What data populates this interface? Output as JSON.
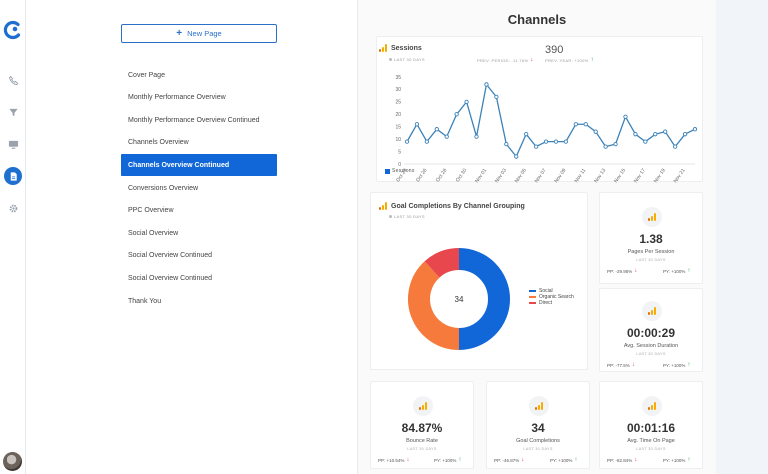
{
  "rail": {
    "icons": [
      "logo-icon",
      "phone-icon",
      "filter-icon",
      "monitor-icon",
      "document-icon",
      "gear-icon"
    ]
  },
  "pages_panel": {
    "new_page_label": "New Page",
    "items": [
      {
        "label": "Cover Page",
        "active": false
      },
      {
        "label": "Monthly Performance Overview",
        "active": false
      },
      {
        "label": "Monthly Performance Overview Continued",
        "active": false
      },
      {
        "label": "Channels Overview",
        "active": false
      },
      {
        "label": "Channels Overview Continued",
        "active": true
      },
      {
        "label": "Conversions Overview",
        "active": false
      },
      {
        "label": "PPC Overview",
        "active": false
      },
      {
        "label": "Social Overview",
        "active": false
      },
      {
        "label": "Social Overview Continued",
        "active": false
      },
      {
        "label": "Social Overview Continued",
        "active": false
      },
      {
        "label": "Thank You",
        "active": false
      }
    ]
  },
  "report": {
    "title": "Channels",
    "sessions": {
      "title": "Sessions",
      "period": "LAST 30 DAYS",
      "total": "390",
      "prev_period": "PREV. PERIOD: -11.76%",
      "prev_year": "PREV. YEAR: +100%",
      "legend": "Sessions",
      "color": "#3b82b8"
    },
    "goal_completions": {
      "title": "Goal Completions By Channel Grouping",
      "period": "LAST 30 DAYS",
      "center_value": "34"
    },
    "kpis": {
      "pages_per_session": {
        "value": "1.38",
        "name": "Pages Per Session",
        "period": "LAST 30 DAYS",
        "pp": "PP: -29.95%",
        "py": "PY: +100%"
      },
      "avg_session_duration": {
        "value": "00:00:29",
        "name": "Avg. Session Duration",
        "period": "LAST 30 DAYS",
        "pp": "PP: -77.5%",
        "py": "PY: +100%"
      },
      "bounce_rate": {
        "value": "84.87%",
        "name": "Bounce Rate",
        "period": "LAST 30 DAYS",
        "pp": "PP: +10.54%",
        "py": "PY: +100%"
      },
      "goal_completions": {
        "value": "34",
        "name": "Goal Completions",
        "period": "LAST 30 DAYS",
        "pp": "PP: -46.87%",
        "py": "PY: +100%"
      },
      "avg_time_on_page": {
        "value": "00:01:16",
        "name": "Avg. Time On Page",
        "period": "LAST 30 DAYS",
        "pp": "PP: -82.84%",
        "py": "PY: +100%"
      }
    },
    "colors": {
      "accent": "#1167d8",
      "up": "#1e9c3d",
      "down": "#e0393e"
    }
  },
  "chart_data": [
    {
      "type": "line",
      "title": "Sessions",
      "ylim": [
        0,
        35
      ],
      "yticks": [
        0,
        5,
        10,
        15,
        20,
        25,
        30,
        35
      ],
      "xtick_labels": [
        "Oct 24",
        "Oct 26",
        "Oct 28",
        "Oct 30",
        "Nov 01",
        "Nov 03",
        "Nov 05",
        "Nov 07",
        "Nov 09",
        "Nov 11",
        "Nov 13",
        "Nov 15",
        "Nov 17",
        "Nov 19",
        "Nov 21"
      ],
      "x": [
        "Oct 24",
        "Oct 25",
        "Oct 26",
        "Oct 27",
        "Oct 28",
        "Oct 29",
        "Oct 30",
        "Oct 31",
        "Nov 01",
        "Nov 02",
        "Nov 03",
        "Nov 04",
        "Nov 05",
        "Nov 06",
        "Nov 07",
        "Nov 08",
        "Nov 09",
        "Nov 10",
        "Nov 11",
        "Nov 12",
        "Nov 13",
        "Nov 14",
        "Nov 15",
        "Nov 16",
        "Nov 17",
        "Nov 18",
        "Nov 19",
        "Nov 20",
        "Nov 21",
        "Nov 22"
      ],
      "series": [
        {
          "name": "Sessions",
          "color": "#3b82b8",
          "values": [
            9,
            16,
            9,
            14,
            11,
            20,
            25,
            11,
            32,
            27,
            8,
            3,
            12,
            7,
            9,
            9,
            9,
            16,
            16,
            13,
            7,
            8,
            19,
            12,
            9,
            12,
            13,
            7,
            12,
            14
          ]
        }
      ],
      "legend": "bottom-left",
      "grid": false
    },
    {
      "type": "pie",
      "title": "Goal Completions By Channel Grouping",
      "categories": [
        "Social",
        "Organic Search",
        "Direct"
      ],
      "values": [
        17,
        13,
        4
      ],
      "colors": [
        "#1167d8",
        "#f57a3c",
        "#e8474d"
      ],
      "legend": "right"
    }
  ]
}
